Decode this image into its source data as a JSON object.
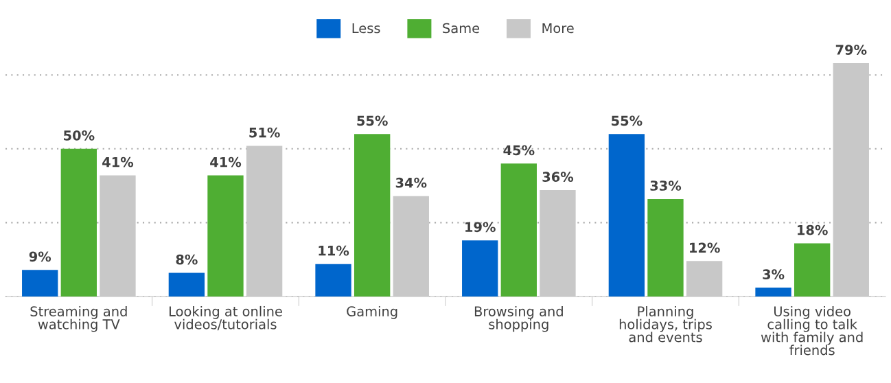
{
  "chart_data": {
    "type": "bar",
    "categories": [
      "Streaming and\nwatching TV",
      "Looking at online\nvideos/tutorials",
      "Gaming",
      "Browsing and\nshopping",
      "Planning\nholidays, trips\nand events",
      "Using video\ncalling to talk\nwith family and\nfriends"
    ],
    "series": [
      {
        "name": "Less",
        "color": "#0066cc",
        "values": [
          9,
          8,
          11,
          19,
          55,
          3
        ],
        "value_labels": [
          "9%",
          "8%",
          "11%",
          "19%",
          "55%",
          "3%"
        ]
      },
      {
        "name": "Same",
        "color": "#4fae33",
        "values": [
          50,
          41,
          55,
          45,
          33,
          18
        ],
        "value_labels": [
          "50%",
          "41%",
          "55%",
          "45%",
          "33%",
          "18%"
        ]
      },
      {
        "name": "More",
        "color": "#c8c8c8",
        "values": [
          41,
          51,
          34,
          36,
          12,
          79
        ],
        "value_labels": [
          "41%",
          "51%",
          "34%",
          "36%",
          "12%",
          "79%"
        ]
      }
    ],
    "tick_labels": "x",
    "grid": "y",
    "legend": "top"
  }
}
